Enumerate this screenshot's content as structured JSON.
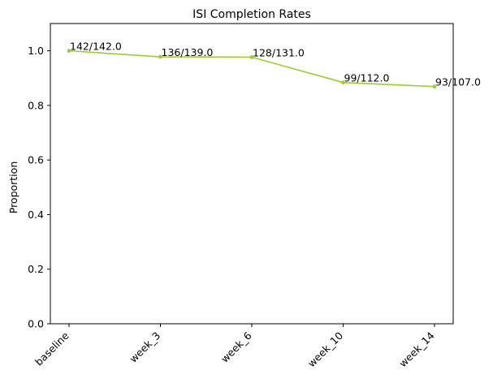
{
  "chart_data": {
    "type": "line",
    "title": "ISI Completion Rates",
    "xlabel": "",
    "ylabel": "Proportion",
    "categories": [
      "baseline",
      "week_3",
      "week_6",
      "week_10",
      "week_14"
    ],
    "series": [
      {
        "values": [
          1.0,
          0.978,
          0.977,
          0.884,
          0.869
        ]
      }
    ],
    "data_labels": [
      "142/142.0",
      "136/139.0",
      "128/131.0",
      "99/112.0",
      "93/107.0"
    ],
    "yticks": [
      0.0,
      0.2,
      0.4,
      0.6,
      0.8,
      1.0
    ],
    "ytick_labels": [
      "0.0",
      "0.2",
      "0.4",
      "0.6",
      "0.8",
      "1.0"
    ],
    "ylim": [
      0,
      1.1
    ],
    "grid": false,
    "line_color": "#9acd32"
  }
}
